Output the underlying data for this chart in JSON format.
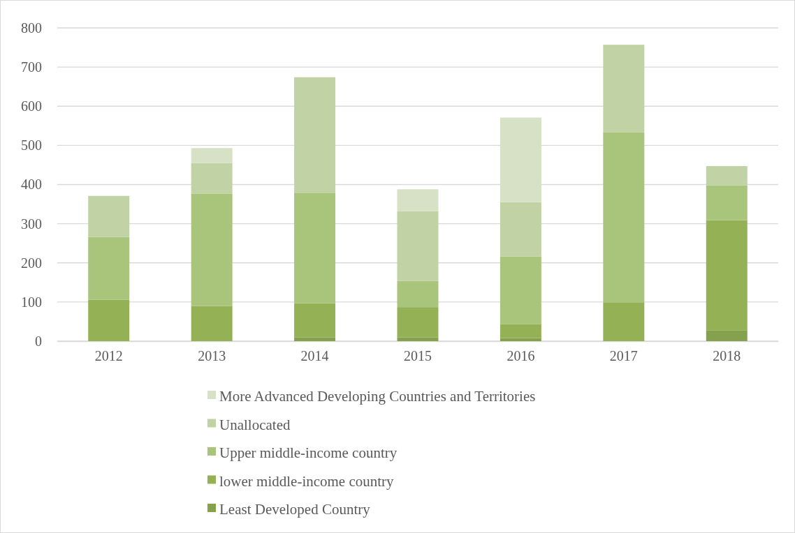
{
  "chart_data": {
    "type": "bar",
    "stacked": true,
    "categories": [
      "2012",
      "2013",
      "2014",
      "2015",
      "2016",
      "2017",
      "2018"
    ],
    "series": [
      {
        "name": "Least Developed Country",
        "color": "#86a14e",
        "values": [
          0,
          0,
          10,
          10,
          8,
          0,
          27
        ]
      },
      {
        "name": "lower middle-income country",
        "color": "#95b156",
        "values": [
          106,
          90,
          87,
          77,
          35,
          98,
          282
        ]
      },
      {
        "name": "Upper middle-income country",
        "color": "#a9c47b",
        "values": [
          160,
          287,
          282,
          67,
          173,
          435,
          89
        ]
      },
      {
        "name": "Unallocated",
        "color": "#c1d2a5",
        "values": [
          105,
          78,
          295,
          178,
          139,
          224,
          49
        ]
      },
      {
        "name": "More Advanced Developing Countries and Territories",
        "color": "#d6e1c5",
        "values": [
          0,
          38,
          0,
          56,
          216,
          0,
          0
        ]
      }
    ],
    "ylim": [
      0,
      800
    ],
    "yticks": [
      0,
      100,
      200,
      300,
      400,
      500,
      600,
      700,
      800
    ],
    "grid": "y",
    "legend": "bottom"
  }
}
